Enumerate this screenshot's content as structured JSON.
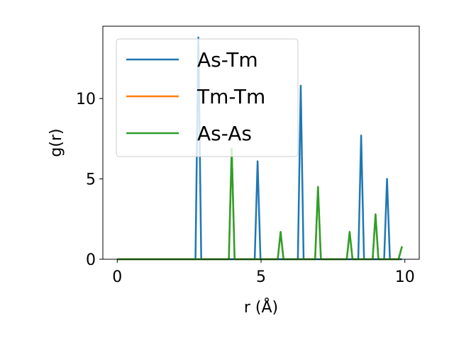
{
  "chart_data": {
    "type": "line",
    "title": "",
    "xlabel": "r (Å)",
    "ylabel": "g(r)",
    "xlim": [
      -0.5,
      10.5
    ],
    "ylim": [
      0,
      14.5
    ],
    "xticks": [
      0,
      5,
      10
    ],
    "yticks": [
      0,
      5,
      10
    ],
    "grid": false,
    "legend_position": "top-left",
    "series": [
      {
        "name": "As-Tm",
        "color": "#1f77b4",
        "x": [
          0,
          2.72,
          2.82,
          2.92,
          4.78,
          4.88,
          4.98,
          6.28,
          6.38,
          6.48,
          8.38,
          8.48,
          8.58,
          9.28,
          9.38,
          9.48,
          9.9
        ],
        "y": [
          0,
          0,
          13.8,
          0,
          0,
          6.1,
          0,
          0,
          10.8,
          0,
          0,
          7.7,
          0,
          0,
          5.0,
          0,
          0
        ]
      },
      {
        "name": "Tm-Tm",
        "color": "#ff7f0e",
        "x": [
          0,
          3.88,
          3.98,
          4.08,
          5.58,
          5.68,
          5.78,
          6.88,
          6.98,
          7.08,
          7.98,
          8.08,
          8.18,
          8.88,
          8.98,
          9.08,
          9.78,
          9.9
        ],
        "y": [
          0,
          0,
          6.9,
          0,
          0,
          1.7,
          0,
          0,
          4.5,
          0,
          0,
          1.7,
          0,
          0,
          2.8,
          0,
          0,
          0.8
        ]
      },
      {
        "name": "As-As",
        "color": "#2ca02c",
        "x": [
          0,
          3.88,
          3.98,
          4.08,
          5.58,
          5.68,
          5.78,
          6.88,
          6.98,
          7.08,
          7.98,
          8.08,
          8.18,
          8.88,
          8.98,
          9.08,
          9.78,
          9.9
        ],
        "y": [
          0,
          0,
          6.9,
          0,
          0,
          1.7,
          0,
          0,
          4.5,
          0,
          0,
          1.7,
          0,
          0,
          2.8,
          0,
          0,
          0.8
        ]
      }
    ]
  }
}
